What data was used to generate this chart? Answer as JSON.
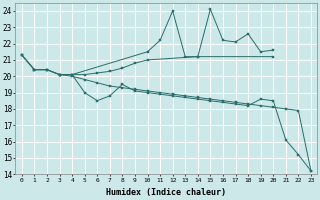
{
  "xlabel": "Humidex (Indice chaleur)",
  "background_color": "#cce8e8",
  "line_color": "#2a6b6b",
  "xlim": [
    -0.5,
    23.5
  ],
  "ylim": [
    14,
    24.5
  ],
  "yticks": [
    14,
    15,
    16,
    17,
    18,
    19,
    20,
    21,
    22,
    23,
    24
  ],
  "xticks": [
    0,
    1,
    2,
    3,
    4,
    5,
    6,
    7,
    8,
    9,
    10,
    11,
    12,
    13,
    14,
    15,
    16,
    17,
    18,
    19,
    20,
    21,
    22,
    23
  ],
  "lines": [
    {
      "x": [
        0,
        1,
        2,
        3,
        4,
        10,
        11,
        12,
        13,
        14,
        15,
        16,
        17,
        18,
        19,
        20
      ],
      "y": [
        21.3,
        20.4,
        20.4,
        20.1,
        20.1,
        21.5,
        22.2,
        24.0,
        21.2,
        21.2,
        24.1,
        22.2,
        22.1,
        22.6,
        21.5,
        21.6
      ]
    },
    {
      "x": [
        0,
        1,
        2,
        3,
        4,
        5,
        6,
        7,
        8,
        9,
        10,
        14,
        20
      ],
      "y": [
        21.3,
        20.4,
        20.4,
        20.1,
        20.1,
        20.1,
        20.2,
        20.3,
        20.5,
        20.8,
        21.0,
        21.2,
        21.2
      ]
    },
    {
      "x": [
        0,
        1,
        2,
        3,
        4,
        5,
        6,
        7,
        8,
        9,
        10,
        11,
        12,
        13,
        14,
        15,
        16,
        17,
        18,
        19,
        20,
        21,
        22,
        23
      ],
      "y": [
        21.3,
        20.4,
        20.4,
        20.1,
        20.0,
        19.8,
        19.6,
        19.4,
        19.3,
        19.2,
        19.1,
        19.0,
        18.9,
        18.8,
        18.7,
        18.6,
        18.5,
        18.4,
        18.3,
        18.2,
        18.1,
        18.0,
        17.9,
        14.2
      ]
    },
    {
      "x": [
        3,
        4,
        5,
        6,
        7,
        8,
        9,
        10,
        11,
        12,
        13,
        14,
        15,
        16,
        17,
        18,
        19,
        20,
        21,
        22,
        23
      ],
      "y": [
        20.1,
        20.1,
        19.0,
        18.5,
        18.8,
        19.5,
        19.1,
        19.0,
        18.9,
        18.8,
        18.7,
        18.6,
        18.5,
        18.4,
        18.3,
        18.2,
        18.6,
        18.5,
        16.1,
        15.2,
        14.2
      ]
    }
  ]
}
